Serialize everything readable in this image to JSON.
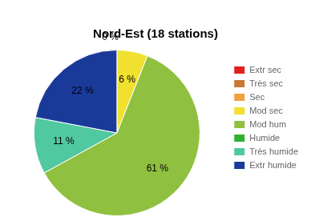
{
  "chart_data": {
    "type": "pie",
    "title": "Nord-Est (18 stations)",
    "categories": [
      "Extr sec",
      "Très sec",
      "Sec",
      "Mod sec",
      "Mod hum",
      "Humide",
      "Très humide",
      "Extr humide"
    ],
    "values": [
      0,
      0,
      0,
      6,
      61,
      0,
      11,
      22
    ],
    "value_labels": [
      null,
      null,
      null,
      "6 %",
      "61 %",
      null,
      "11 %",
      "22 %"
    ],
    "colors": [
      "#e02020",
      "#c87830",
      "#f0a040",
      "#f0e030",
      "#90c040",
      "#30b030",
      "#50c8a0",
      "#1a3a9a"
    ],
    "data_labels": true,
    "annotation": "0 %",
    "legend": "right"
  }
}
